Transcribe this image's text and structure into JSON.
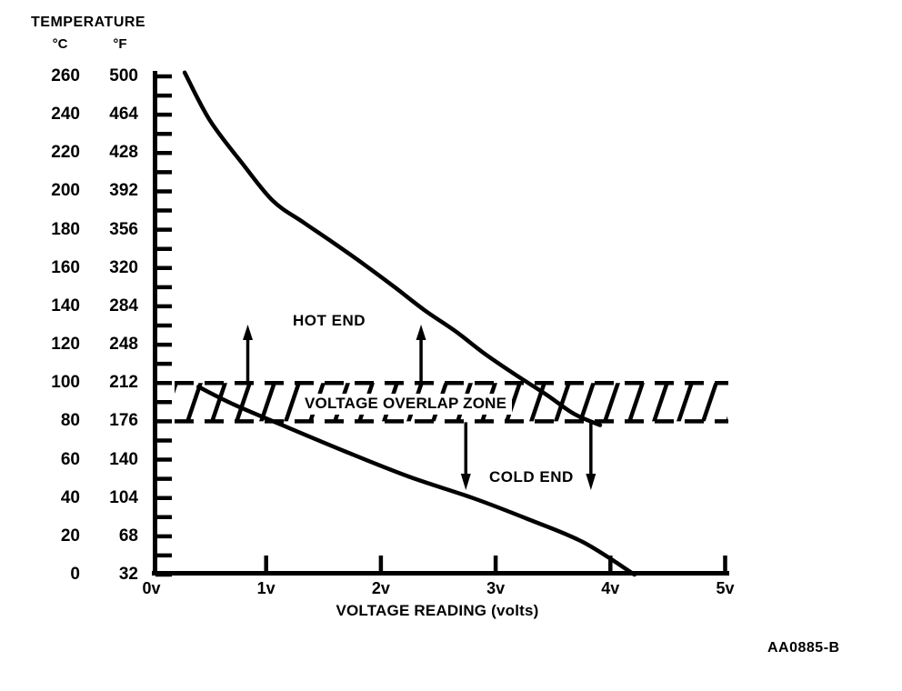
{
  "title": "TEMPERATURE",
  "y_axis": {
    "header_c": "°C",
    "header_f": "°F",
    "celsius": [
      260,
      240,
      220,
      200,
      180,
      160,
      140,
      120,
      100,
      80,
      60,
      40,
      20,
      0
    ],
    "fahrenheit": [
      500,
      464,
      428,
      392,
      356,
      320,
      284,
      248,
      212,
      176,
      140,
      104,
      68,
      32
    ]
  },
  "x_axis": {
    "label": "VOLTAGE READING (volts)",
    "ticks": [
      "0v",
      "1v",
      "2v",
      "3v",
      "4v",
      "5v"
    ]
  },
  "figure_code": "AA0885-B",
  "colors": {
    "ink": "#000000",
    "paper": "#ffffff"
  },
  "chart_data": {
    "type": "line",
    "title": "TEMPERATURE vs VOLTAGE READING",
    "xlabel": "VOLTAGE READING (volts)",
    "ylabel": "TEMPERATURE (°C / °F)",
    "xlim": [
      0,
      5
    ],
    "ylim_c": [
      0,
      260
    ],
    "ylim_f": [
      32,
      500
    ],
    "x_tick_step_volts": 1,
    "y_minor_tick_step_c": 10,
    "y_label_step_c": 20,
    "grid": false,
    "legend": "inline-annotations",
    "series": [
      {
        "name": "HOT END",
        "points_v_c": [
          [
            0.29,
            262
          ],
          [
            0.51,
            237
          ],
          [
            0.8,
            214
          ],
          [
            1.06,
            195
          ],
          [
            1.32,
            184
          ],
          [
            1.59,
            173
          ],
          [
            1.85,
            162
          ],
          [
            2.12,
            150
          ],
          [
            2.38,
            138
          ],
          [
            2.65,
            127
          ],
          [
            2.91,
            115
          ],
          [
            3.18,
            104
          ],
          [
            3.44,
            94
          ],
          [
            3.68,
            84
          ],
          [
            3.91,
            78
          ]
        ]
      },
      {
        "name": "COLD END",
        "points_v_c": [
          [
            0.41,
            98
          ],
          [
            0.71,
            89
          ],
          [
            1.14,
            78
          ],
          [
            1.7,
            64
          ],
          [
            2.25,
            51
          ],
          [
            2.8,
            40
          ],
          [
            3.28,
            29
          ],
          [
            3.76,
            17
          ],
          [
            4.21,
            0
          ]
        ]
      }
    ],
    "overlap_zone": {
      "label": "VOLTAGE OVERLAP ZONE",
      "c_min": 80,
      "c_max": 100,
      "f_min": 176,
      "f_max": 212
    },
    "annotations": {
      "up_arrows_at_volts": [
        0.84,
        2.35
      ],
      "down_arrows_at_volts": [
        2.74,
        3.83
      ]
    }
  }
}
